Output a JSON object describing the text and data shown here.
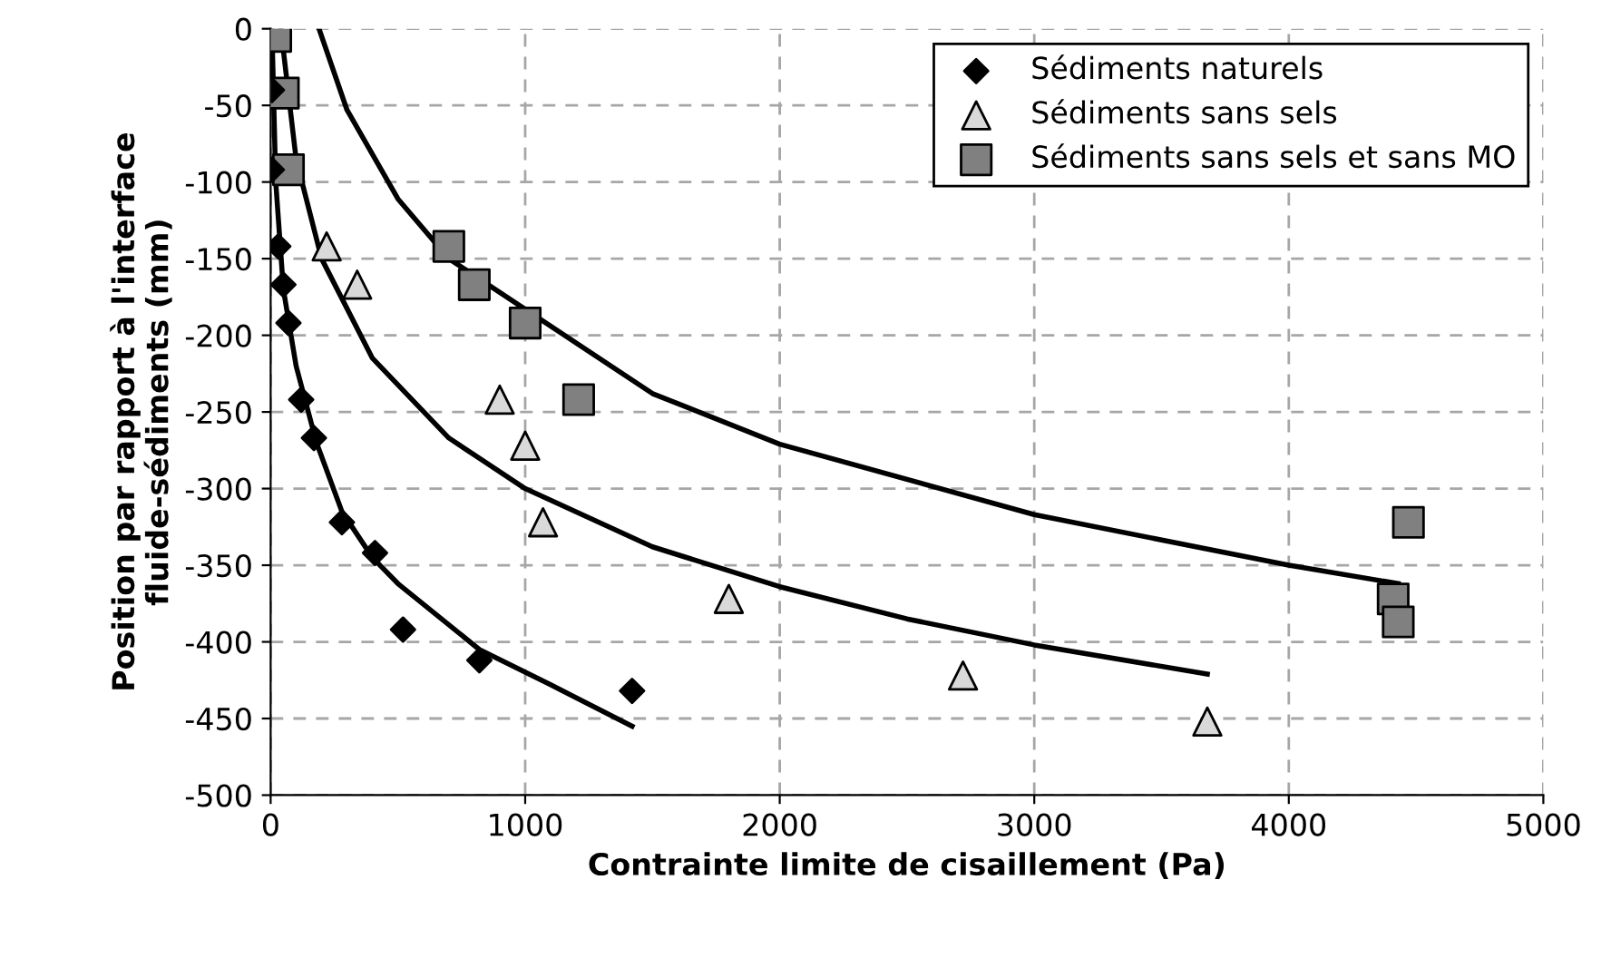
{
  "chart_data": {
    "type": "scatter",
    "xlabel": "Contrainte limite de cisaillement (Pa)",
    "ylabel": "Position par rapport à l'interface fluide-sédiments (mm)",
    "xlim": [
      0,
      5000
    ],
    "xticks": [
      0,
      1000,
      2000,
      3000,
      4000,
      5000
    ],
    "ylim": [
      -500,
      0
    ],
    "yticks": [
      -500,
      -450,
      -400,
      -350,
      -300,
      -250,
      -200,
      -150,
      -100,
      -50,
      0
    ],
    "grid": true,
    "legend": "top right",
    "series": [
      {
        "name": "Sédiments naturels",
        "color": "#000000",
        "marker": "diamond",
        "x": [
          5,
          5,
          30,
          50,
          70,
          120,
          170,
          280,
          410,
          520,
          820,
          1420
        ],
        "values": [
          -40,
          -92,
          -142,
          -167,
          -192,
          -242,
          -267,
          -322,
          -342,
          -392,
          -412,
          -432
        ]
      },
      {
        "name": "Sédiments sans sels",
        "color": "#d9d9d9",
        "marker": "triangle",
        "x": [
          220,
          340,
          900,
          1000,
          1070,
          1800,
          2720,
          3680
        ],
        "values": [
          -142,
          -167,
          -242,
          -272,
          -322,
          -372,
          -422,
          -452
        ]
      },
      {
        "name": "Sédiments sans sels et sans MO",
        "color": "#808080",
        "marker": "square",
        "x": [
          20,
          50,
          70,
          700,
          800,
          1000,
          1210,
          4470,
          4410,
          4430
        ],
        "values": [
          -5,
          -42,
          -92,
          -142,
          -167,
          -192,
          -242,
          -322,
          -372,
          -387
        ]
      },
      {
        "type": "line",
        "color": "#000000",
        "x": [
          5,
          20,
          50,
          100,
          180,
          280,
          400,
          500,
          820,
          1100,
          1420
        ],
        "values": [
          0,
          -100,
          -170,
          -220,
          -270,
          -315,
          -345,
          -362,
          -405,
          -428,
          -455
        ]
      },
      {
        "type": "line",
        "color": "#000000",
        "x": [
          40,
          100,
          200,
          400,
          700,
          1000,
          1500,
          2000,
          2500,
          3000,
          3680
        ],
        "values": [
          0,
          -85,
          -150,
          -215,
          -267,
          -300,
          -338,
          -364,
          -385,
          -402,
          -421
        ]
      },
      {
        "type": "line",
        "color": "#000000",
        "x": [
          190,
          300,
          500,
          700,
          1500,
          2000,
          3000,
          4000,
          4430
        ],
        "values": [
          0,
          -53,
          -111,
          -150,
          -238,
          -271,
          -317,
          -350,
          -362
        ]
      }
    ]
  }
}
